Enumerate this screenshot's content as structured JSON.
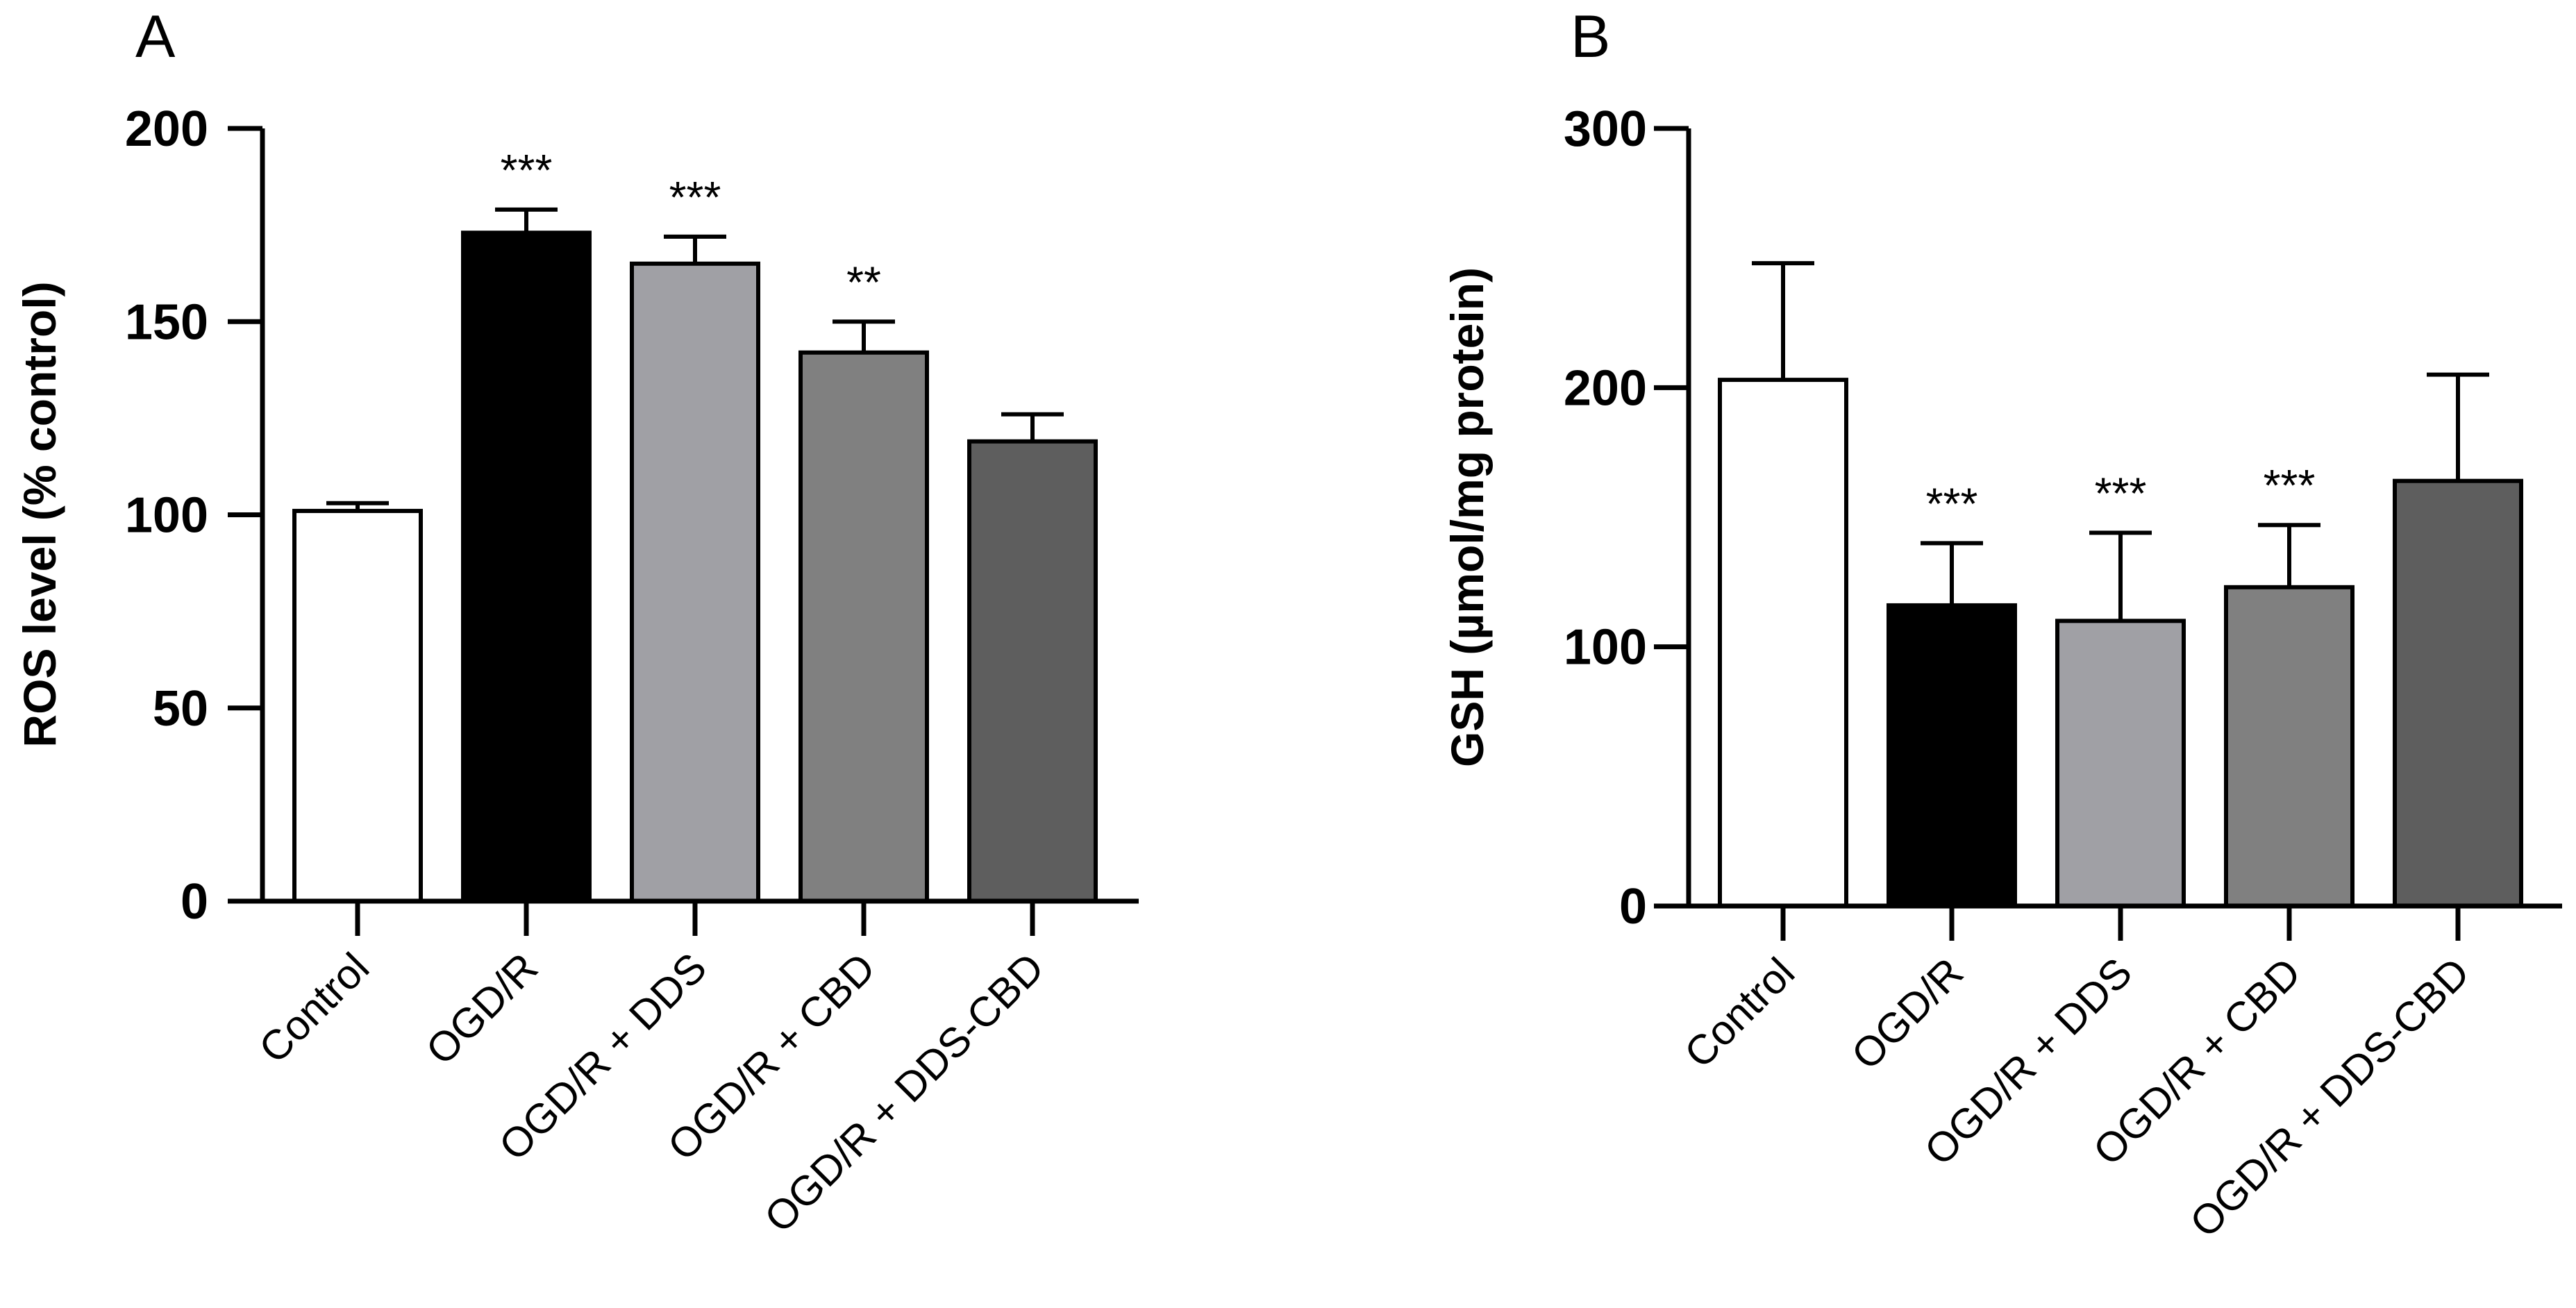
{
  "colors": {
    "text": "#000000",
    "background": "#ffffff",
    "bar_fills": [
      "#ffffff",
      "#000000",
      "#a0a0a5",
      "#808080",
      "#5e5e5e"
    ]
  },
  "chart_data": [
    {
      "id": "A",
      "type": "bar",
      "panel_label": "A",
      "title": "",
      "xlabel": "",
      "ylabel": "ROS level (% control)",
      "ylim": [
        0,
        200
      ],
      "yticks": [
        0,
        50,
        100,
        150,
        200
      ],
      "grid": false,
      "categories": [
        "Control",
        "OGD/R",
        "OGD/R  + DDS",
        "OGD/R  + CBD",
        "OGD/R  + DDS-CBD"
      ],
      "values": [
        101,
        173,
        165,
        142,
        119
      ],
      "errors": [
        2,
        6,
        7,
        8,
        7
      ],
      "significance": [
        "",
        "***",
        "***",
        "**",
        ""
      ]
    },
    {
      "id": "B",
      "type": "bar",
      "panel_label": "B",
      "title": "",
      "xlabel": "",
      "ylabel": "GSH (µmol/mg protein)",
      "ylim": [
        0,
        300
      ],
      "yticks": [
        0,
        100,
        200,
        300
      ],
      "grid": false,
      "categories": [
        "Control",
        "OGD/R",
        "OGD/R + DDS",
        "OGD/R + CBD",
        "OGD/R + DDS-CBD"
      ],
      "values": [
        203,
        116,
        110,
        123,
        164
      ],
      "errors": [
        45,
        24,
        34,
        24,
        41
      ],
      "significance": [
        "",
        "***",
        "***",
        "***",
        ""
      ]
    }
  ]
}
